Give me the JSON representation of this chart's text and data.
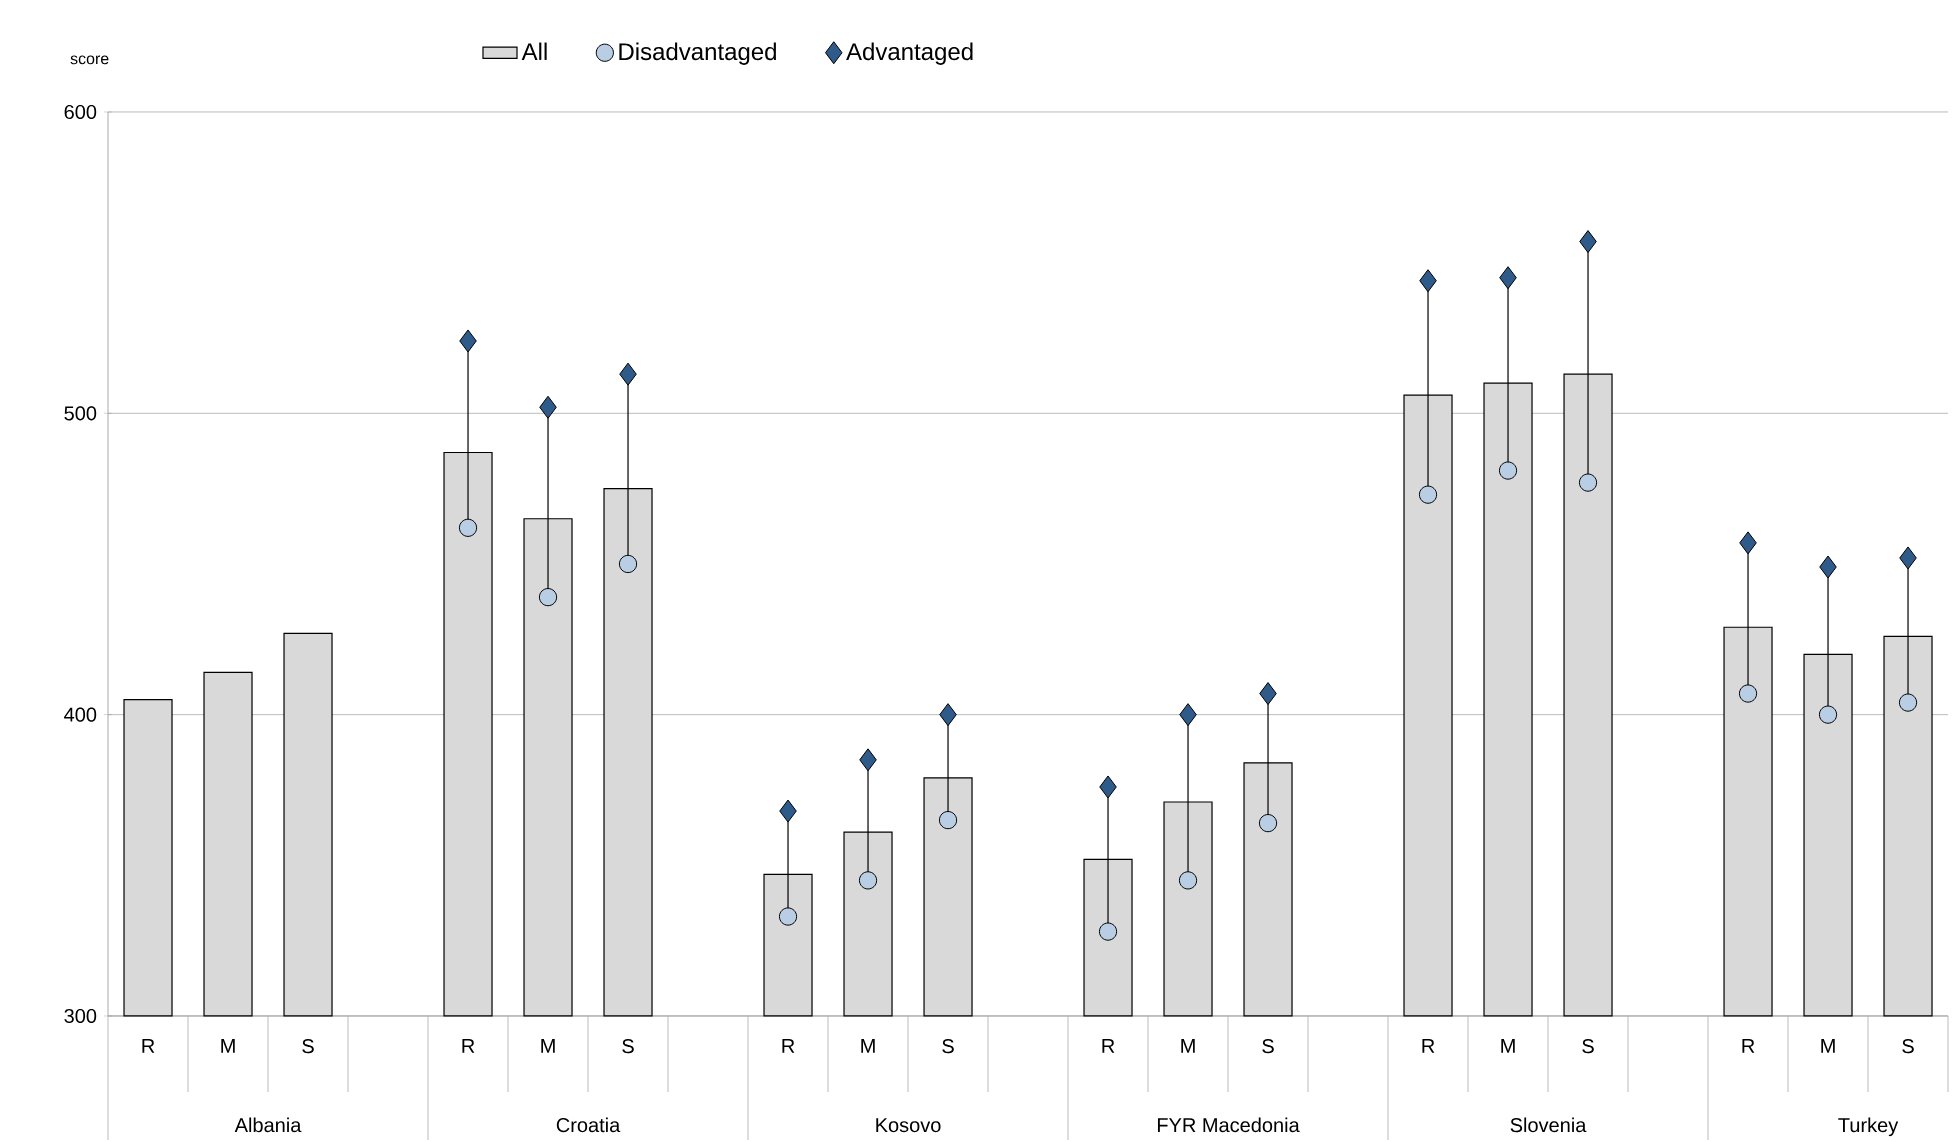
{
  "chart_data": {
    "type": "bar",
    "ylabel": "score",
    "categories": [
      "R",
      "M",
      "S",
      null,
      "R",
      "M",
      "S",
      null,
      "R",
      "M",
      "S",
      null,
      "R",
      "M",
      "S",
      null,
      "R",
      "M",
      "S",
      null,
      "R",
      "M",
      "S"
    ],
    "annotations": [
      "Albania",
      "Croatia",
      "Kosovo",
      "FYR Macedonia",
      "Slovenia",
      "Turkey"
    ],
    "series": [
      {
        "name": "All",
        "type": "bar",
        "color": "#d9d9d9",
        "values": [
          405,
          414,
          427,
          null,
          487,
          465,
          475,
          null,
          347,
          361,
          379,
          null,
          352,
          371,
          384,
          null,
          506,
          510,
          513,
          null,
          429,
          420,
          426
        ]
      },
      {
        "name": "Disadvantaged",
        "type": "scatter",
        "marker": "circle",
        "color": "#b9cde5",
        "values": [
          null,
          null,
          null,
          null,
          462,
          439,
          450,
          null,
          333,
          345,
          365,
          null,
          328,
          345,
          364,
          null,
          473,
          481,
          477,
          null,
          407,
          400,
          404
        ]
      },
      {
        "name": "Advantaged",
        "type": "scatter",
        "marker": "diamond",
        "color": "#2f5b8b",
        "values": [
          null,
          null,
          null,
          null,
          524,
          502,
          513,
          null,
          368,
          385,
          400,
          null,
          376,
          400,
          407,
          null,
          544,
          545,
          557,
          null,
          457,
          449,
          452
        ]
      }
    ],
    "ylim": [
      300,
      600
    ],
    "yticks": [
      300,
      400,
      500,
      600
    ],
    "grid": "y",
    "legend": "top"
  }
}
